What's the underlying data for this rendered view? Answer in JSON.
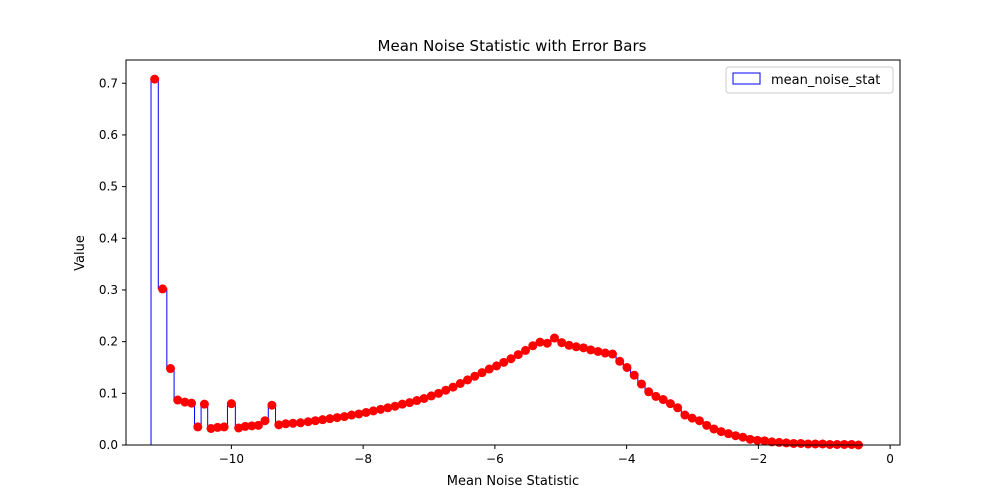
{
  "chart_data": {
    "type": "step",
    "title": "Mean Noise Statistic with Error Bars",
    "xlabel": "Mean Noise Statistic",
    "ylabel": "Value",
    "xlim": [
      -11.6,
      0.15
    ],
    "ylim": [
      0.0,
      0.745
    ],
    "x_ticks": [
      -10,
      -8,
      -6,
      -4,
      -2,
      0
    ],
    "x_tick_labels": [
      "−10",
      "−8",
      "−6",
      "−4",
      "−2",
      "0"
    ],
    "y_ticks": [
      0.0,
      0.1,
      0.2,
      0.3,
      0.4,
      0.5,
      0.6,
      0.7
    ],
    "y_tick_labels": [
      "0.0",
      "0.1",
      "0.2",
      "0.3",
      "0.4",
      "0.5",
      "0.6",
      "0.7"
    ],
    "legend_position": "top-right",
    "grid": false,
    "series": [
      {
        "name": "mean_noise_stat",
        "style": "step-histogram",
        "color": "#0000ff",
        "bin_edges": [
          -11.22,
          -11.11,
          -10.98,
          -10.87,
          -10.76,
          -10.65,
          -10.56,
          -10.46,
          -10.36,
          -10.26,
          -10.16,
          -10.06,
          -9.94,
          -9.84,
          -9.74,
          -9.64,
          -9.54,
          -9.44,
          -9.33,
          -9.23,
          -9.12,
          -9.01,
          -8.89,
          -8.78,
          -8.67,
          -8.56,
          -8.45,
          -8.34,
          -8.23,
          -8.12,
          -8.01,
          -7.9,
          -7.79,
          -7.68,
          -7.57,
          -7.46,
          -7.35,
          -7.24,
          -7.13,
          -7.02,
          -6.91,
          -6.8,
          -6.69,
          -6.58,
          -6.47,
          -6.36,
          -6.25,
          -6.14,
          -6.03,
          -5.92,
          -5.81,
          -5.7,
          -5.59,
          -5.48,
          -5.37,
          -5.26,
          -5.15,
          -5.04,
          -4.93,
          -4.82,
          -4.71,
          -4.6,
          -4.49,
          -4.38,
          -4.27,
          -4.16,
          -4.05,
          -3.94,
          -3.83,
          -3.72,
          -3.61,
          -3.5,
          -3.39,
          -3.28,
          -3.17,
          -3.06,
          -2.95,
          -2.84,
          -2.73,
          -2.62,
          -2.51,
          -2.4,
          -2.29,
          -2.18,
          -2.07,
          -1.96,
          -1.85,
          -1.74,
          -1.63,
          -1.52,
          -1.41,
          -1.3,
          -1.19,
          -1.08,
          -0.97,
          -0.86,
          -0.75,
          -0.64,
          -0.53,
          -0.43
        ],
        "values": [
          0.708,
          0.302,
          0.148,
          0.087,
          0.083,
          0.081,
          0.035,
          0.079,
          0.032,
          0.034,
          0.035,
          0.08,
          0.033,
          0.036,
          0.037,
          0.038,
          0.047,
          0.077,
          0.039,
          0.041,
          0.042,
          0.043,
          0.045,
          0.047,
          0.049,
          0.051,
          0.053,
          0.055,
          0.058,
          0.06,
          0.063,
          0.066,
          0.069,
          0.072,
          0.075,
          0.079,
          0.082,
          0.086,
          0.09,
          0.095,
          0.1,
          0.106,
          0.112,
          0.119,
          0.126,
          0.133,
          0.14,
          0.147,
          0.153,
          0.16,
          0.167,
          0.175,
          0.183,
          0.192,
          0.199,
          0.197,
          0.207,
          0.198,
          0.193,
          0.19,
          0.188,
          0.184,
          0.181,
          0.178,
          0.176,
          0.162,
          0.15,
          0.135,
          0.118,
          0.103,
          0.094,
          0.088,
          0.08,
          0.072,
          0.058,
          0.052,
          0.047,
          0.038,
          0.031,
          0.026,
          0.022,
          0.018,
          0.015,
          0.011,
          0.009,
          0.008,
          0.006,
          0.005,
          0.004,
          0.003,
          0.003,
          0.002,
          0.002,
          0.002,
          0.001,
          0.001,
          0.001,
          0.001,
          0.0
        ]
      },
      {
        "name": "",
        "style": "error-markers",
        "color": "#ff0000"
      }
    ]
  }
}
